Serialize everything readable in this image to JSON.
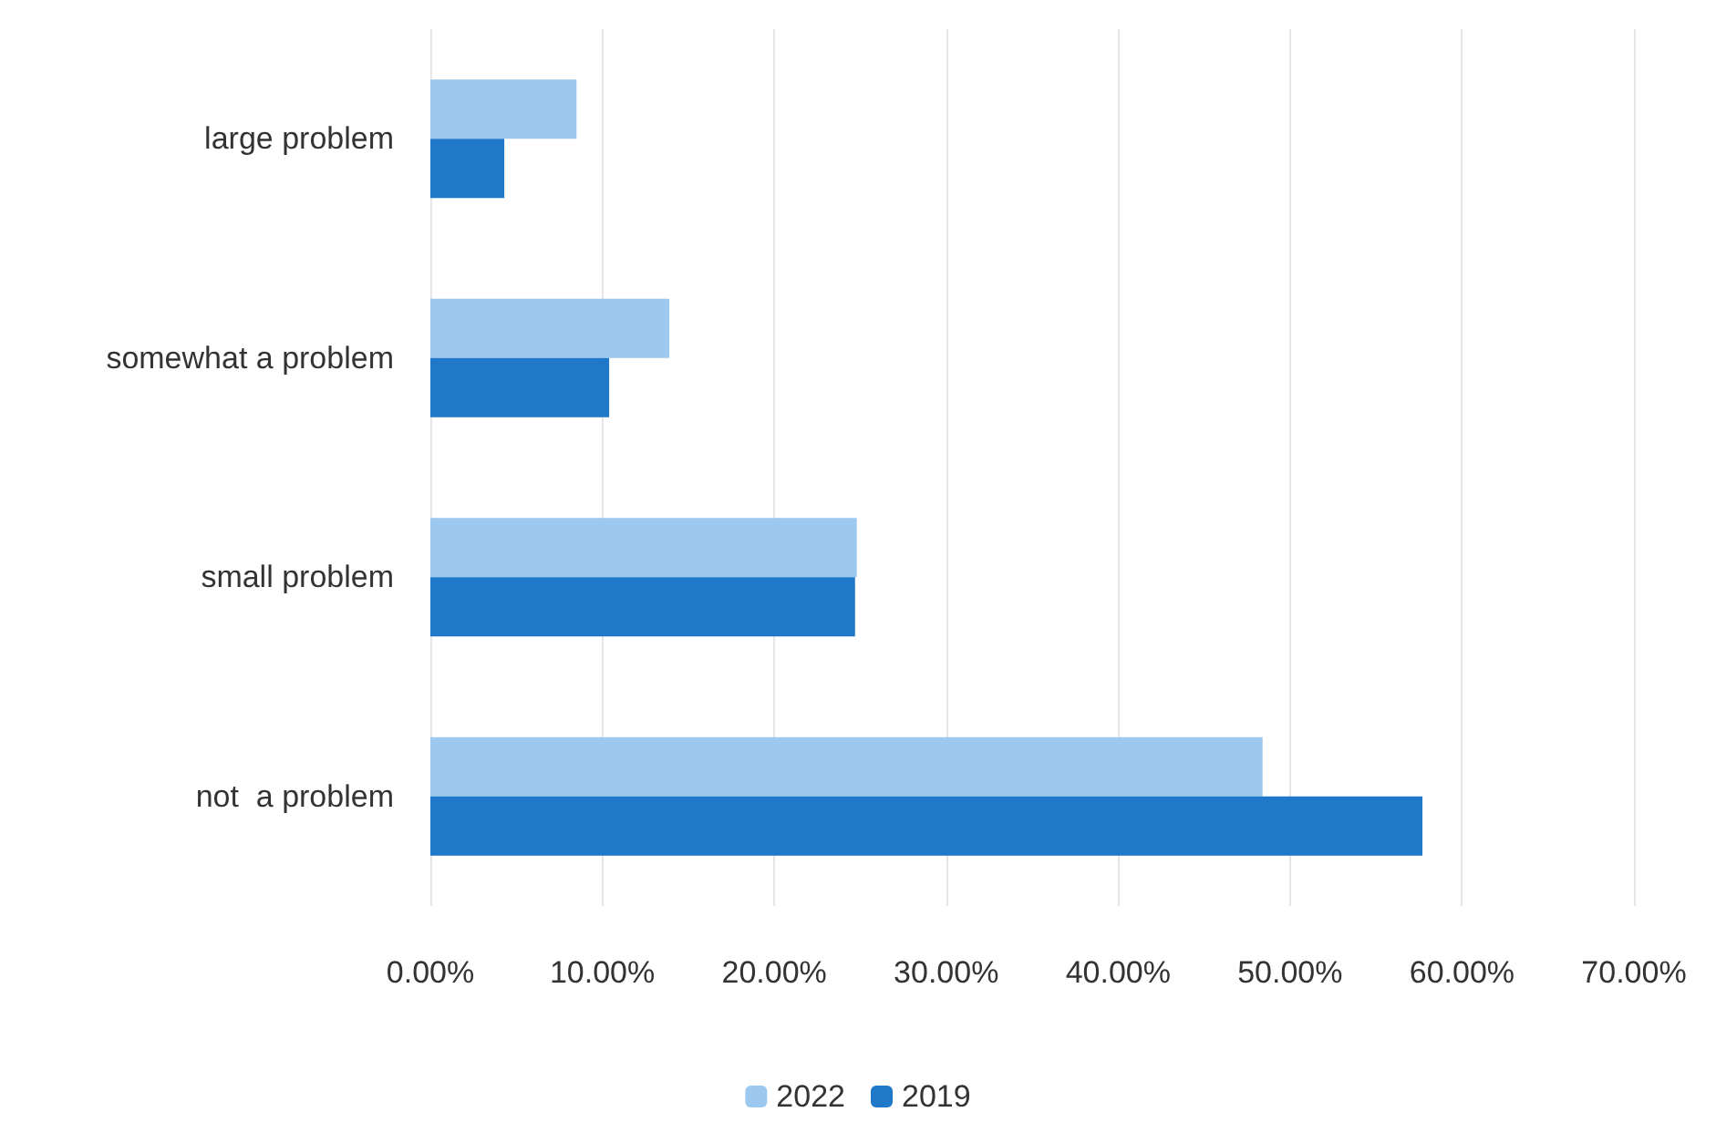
{
  "chart_data": {
    "type": "bar",
    "orientation": "horizontal",
    "categories": [
      "large problem",
      "somewhat a problem",
      "small problem",
      "not  a problem"
    ],
    "series": [
      {
        "name": "2022",
        "color": "#9dc8ef",
        "values": [
          8.5,
          13.9,
          24.8,
          48.4
        ]
      },
      {
        "name": "2019",
        "color": "#1f78c8",
        "values": [
          4.3,
          10.4,
          24.7,
          57.7
        ]
      }
    ],
    "xlim": [
      0,
      70
    ],
    "xticks": [
      {
        "value": 0,
        "label": "0.00%"
      },
      {
        "value": 10,
        "label": "10.00%"
      },
      {
        "value": 20,
        "label": "20.00%"
      },
      {
        "value": 30,
        "label": "30.00%"
      },
      {
        "value": 40,
        "label": "40.00%"
      },
      {
        "value": 50,
        "label": "50.00%"
      },
      {
        "value": 60,
        "label": "60.00%"
      },
      {
        "value": 70,
        "label": "70.00%"
      }
    ],
    "grid": "x",
    "legend": "bottom"
  }
}
